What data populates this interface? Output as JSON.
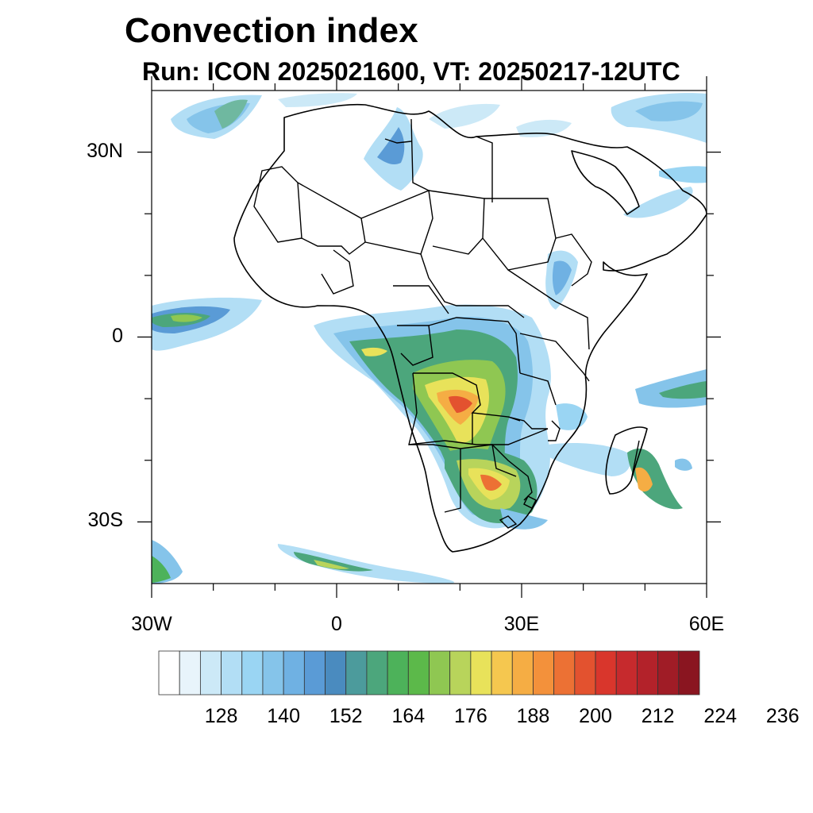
{
  "title": "Convection index",
  "subtitle": "Run: ICON 2025021600,  VT: 20250217-12UTC",
  "map": {
    "extent": {
      "lon_min": -30,
      "lon_max": 60,
      "lat_min": -40,
      "lat_max": 40
    },
    "lat_labels": [
      {
        "lat": 30,
        "text": "30N"
      },
      {
        "lat": 0,
        "text": "0"
      },
      {
        "lat": -30,
        "text": "30S"
      }
    ],
    "lon_labels": [
      {
        "lon": -30,
        "text": "30W"
      },
      {
        "lon": 0,
        "text": "0"
      },
      {
        "lon": 30,
        "text": "30E"
      },
      {
        "lon": 60,
        "text": "60E"
      }
    ]
  },
  "colorbar": {
    "colors": [
      "#ffffff",
      "#e8f4fb",
      "#cce9f7",
      "#b2def5",
      "#9ad5f3",
      "#85c4ea",
      "#6fb1e3",
      "#5a9bd6",
      "#4a8bbf",
      "#4c9b9c",
      "#4ca67c",
      "#4db25a",
      "#5cb94a",
      "#8fc752",
      "#b8d45b",
      "#e8e25a",
      "#f5c74f",
      "#f5ad44",
      "#f3913b",
      "#ec7134",
      "#e3522f",
      "#d9362c",
      "#c62a2d",
      "#b3222a",
      "#a01c26",
      "#8a1520"
    ],
    "tick_labels": [
      "128",
      "140",
      "152",
      "164",
      "176",
      "188",
      "200",
      "212",
      "224",
      "236"
    ]
  }
}
